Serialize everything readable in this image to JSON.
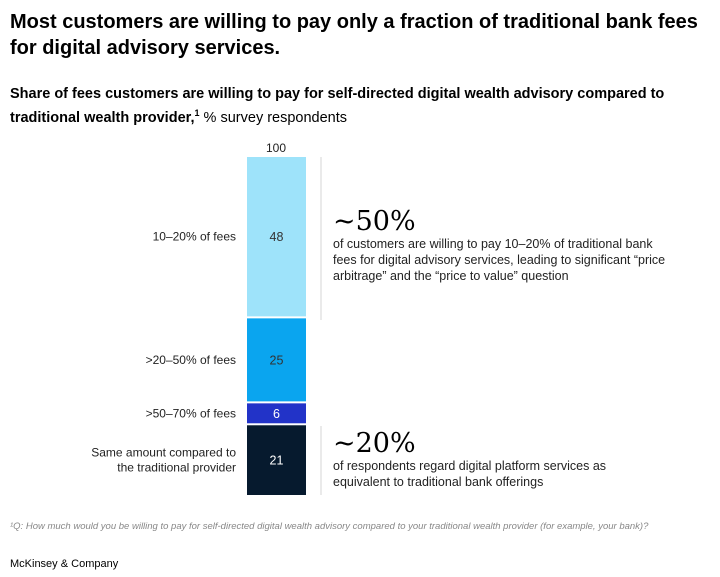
{
  "title": "Most customers are willing to pay only a fraction of traditional bank fees for digital advisory services.",
  "subtitle": {
    "bold": "Share of fees customers are willing to pay for self-directed digital wealth advisory compared to traditional wealth provider,",
    "sup": "1",
    "rest": " % survey respondents"
  },
  "chart_data": {
    "type": "bar",
    "stacked": true,
    "total_label": "100",
    "categories": [
      "10–20% of fees",
      ">20–50% of fees",
      ">50–70% of fees",
      "Same amount compared to the traditional provider"
    ],
    "values": [
      48,
      25,
      6,
      21
    ],
    "colors": [
      "#9EE3FA",
      "#0AA5EF",
      "#2233C8",
      "#061A2E"
    ],
    "label_colors": [
      "#333333",
      "#333333",
      "#ffffff",
      "#ffffff"
    ],
    "ylim": [
      0,
      100
    ]
  },
  "callouts": [
    {
      "value": "~50%",
      "text": "of customers are willing to pay 10–20% of traditional bank fees for digital advisory services, leading to significant “price arbitrage” and the “price to value” question"
    },
    {
      "value": "~20%",
      "text": "of respondents regard digital platform services as equivalent to traditional bank offerings"
    }
  ],
  "footnote": "¹Q: How much would you be willing to pay for self-directed digital wealth advisory compared to your traditional wealth provider (for example, your bank)?",
  "brand": "McKinsey & Company"
}
